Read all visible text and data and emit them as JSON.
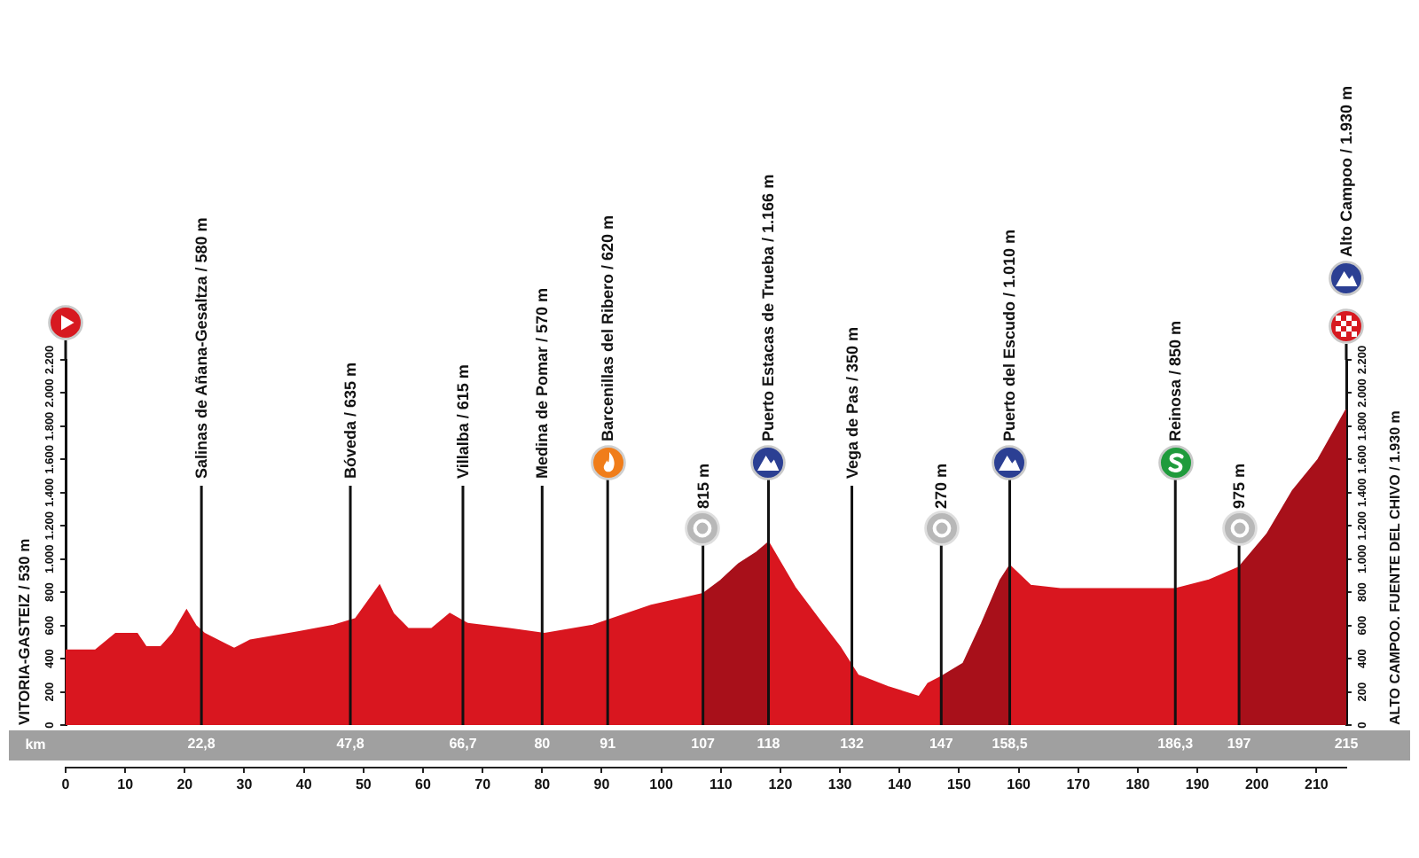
{
  "chart_data": {
    "type": "area",
    "ylabel": "VITORIA-GASTEIZ / 530 m",
    "y2label": "ALTO CAMPOO. FUENTE DEL CHIVO / 1.930 m",
    "x2label": "km",
    "annotations": [
      "Alto Campoo / 1.930 m"
    ],
    "xlim": [
      0,
      215
    ],
    "xticks": [
      0,
      10,
      20,
      30,
      40,
      50,
      60,
      70,
      80,
      90,
      100,
      110,
      120,
      130,
      140,
      150,
      160,
      170,
      180,
      190,
      200,
      210
    ],
    "x2lim": [
      0,
      215
    ],
    "x2ticks": [
      {
        "value": 22.8,
        "label": "22,8"
      },
      {
        "value": 47.8,
        "label": "47,8"
      },
      {
        "value": 66.7,
        "label": "66,7"
      },
      80,
      91,
      107,
      118,
      132,
      147,
      {
        "value": 158.5,
        "label": "158,5"
      },
      {
        "value": 186.3,
        "label": "186,3"
      },
      197,
      215
    ],
    "ylim": [
      0,
      2200
    ],
    "yticks": [
      0,
      200,
      400,
      600,
      800,
      {
        "value": 1000,
        "label": "1.000"
      },
      {
        "value": 1200,
        "label": "1.200"
      },
      {
        "value": 1400,
        "label": "1.400"
      },
      {
        "value": 1600,
        "label": "1.600"
      },
      {
        "value": 1800,
        "label": "1.800"
      },
      {
        "value": 2000,
        "label": "2.000"
      },
      {
        "value": 2200,
        "label": "2.200"
      }
    ],
    "y2lim": [
      0,
      2200
    ],
    "y2ticks": [
      0,
      200,
      400,
      600,
      800,
      {
        "value": 1000,
        "label": "1.000"
      },
      {
        "value": 1200,
        "label": "1.200"
      },
      {
        "value": 1400,
        "label": "1.400"
      },
      {
        "value": 1600,
        "label": "1.600"
      },
      {
        "value": 1800,
        "label": "1.800"
      },
      {
        "value": 2000,
        "label": "2.000"
      },
      {
        "value": 2200,
        "label": "2.200"
      }
    ],
    "series": [
      {
        "color": "#d9161f",
        "x": [
          0,
          5,
          8.4,
          12,
          13.5,
          16,
          18,
          20.3,
          21.8,
          23.3,
          28.3,
          31,
          39,
          45,
          48.7,
          52.7,
          55,
          57.5,
          61.5,
          64.5,
          67.5,
          74.5,
          80.4,
          88.5,
          98.3,
          107
        ],
        "values": [
          450,
          450,
          550,
          550,
          470,
          470,
          550,
          690,
          600,
          550,
          460,
          510,
          560,
          600,
          640,
          840,
          670,
          580,
          580,
          670,
          610,
          580,
          550,
          600,
          720,
          790
        ]
      },
      {
        "color": "#a8101a",
        "x": [
          107,
          110,
          113,
          116,
          118
        ],
        "values": [
          790,
          870,
          970,
          1040,
          1100
        ]
      },
      {
        "color": "#d9161f",
        "x": [
          118,
          122.4,
          127,
          130,
          133,
          138,
          143.3,
          144.8,
          147
        ],
        "values": [
          1100,
          830,
          610,
          470,
          300,
          230,
          170,
          250,
          290
        ]
      },
      {
        "color": "#a8101a",
        "x": [
          147,
          150.7,
          153.8,
          156.9,
          158.5
        ],
        "values": [
          290,
          370,
          610,
          870,
          960
        ]
      },
      {
        "color": "#d9161f",
        "x": [
          158.5,
          162,
          167,
          186.3,
          191.8,
          197
        ],
        "values": [
          960,
          840,
          820,
          820,
          870,
          950
        ]
      },
      {
        "color": "#a8101a",
        "x": [
          197,
          201.7,
          206,
          210.3,
          215
        ],
        "values": [
          950,
          1150,
          1410,
          1600,
          1900
        ]
      }
    ],
    "ref_lines": [
      {
        "axis": "x",
        "value": 22.8,
        "label": "Salinas de Añana-Gesaltza / 580 m"
      },
      {
        "axis": "x",
        "value": 47.8,
        "label": "Bóveda / 635 m"
      },
      {
        "axis": "x",
        "value": 66.7,
        "label": "Villalba / 615 m"
      },
      {
        "axis": "x",
        "value": 80,
        "label": "Medina de Pomar / 570 m"
      },
      {
        "axis": "x",
        "value": 91,
        "label": "Barcenillas del Ribero / 620 m"
      },
      {
        "axis": "x",
        "value": 107,
        "label": "815 m"
      },
      {
        "axis": "x",
        "value": 118,
        "label": "Puerto Estacas de Trueba / 1.166 m"
      },
      {
        "axis": "x",
        "value": 132,
        "label": "Vega de Pas / 350 m"
      },
      {
        "axis": "x",
        "value": 147,
        "label": "270 m"
      },
      {
        "axis": "x",
        "value": 158.5,
        "label": "Puerto del Escudo / 1.010 m"
      },
      {
        "axis": "x",
        "value": 186.3,
        "label": "Reinosa / 850 m"
      },
      {
        "axis": "x",
        "value": 197,
        "label": "975 m"
      }
    ]
  }
}
